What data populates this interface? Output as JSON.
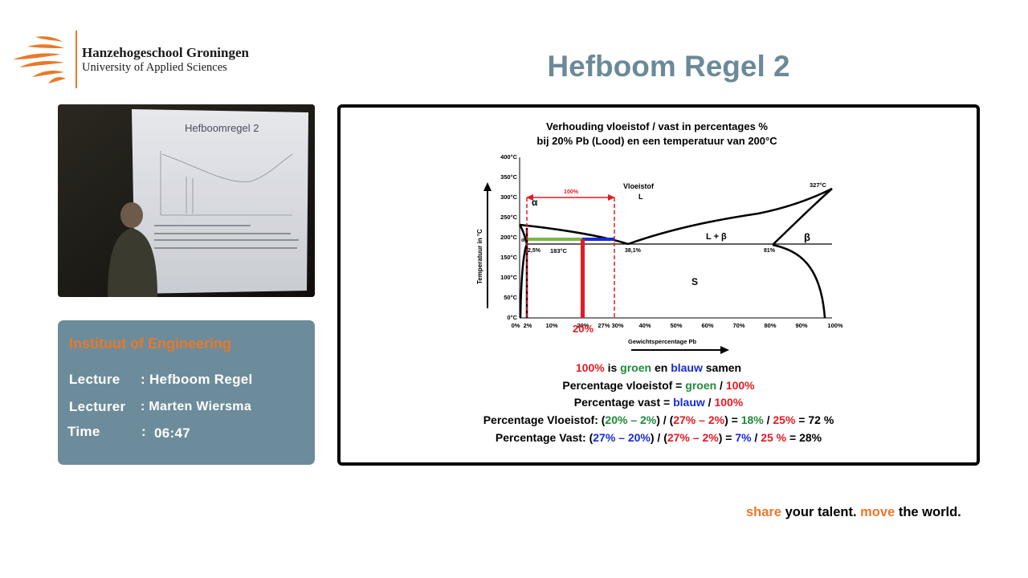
{
  "logo": {
    "name": "Hanzehogeschool Groningen",
    "subtitle": "University of Applied Sciences",
    "icon": "flame-logo-icon"
  },
  "page": {
    "title": "Hefboom Regel 2"
  },
  "video": {
    "slide_title": "Hefboomregel 2",
    "icon": "lecture-video-frame"
  },
  "info": {
    "heading": "Instituut of Engineering",
    "rows": [
      {
        "label": "Lecture",
        "value": ": Hefboom Regel"
      },
      {
        "label": "Lecturer",
        "value": ": Marten Wiersma"
      },
      {
        "label": "Time",
        "value": ":",
        "value2": "06:47"
      }
    ]
  },
  "diagram": {
    "title_line1": "Verhouding vloeistof / vast in percentages %",
    "title_line2": "bij 20% Pb (Lood) en een temperatuur van 200°C",
    "ylabel": "Temperatuur in °C",
    "xlabel": "Gewichtspercentage Pb",
    "yticks": [
      "400°C",
      "350°C",
      "300°C",
      "250°C",
      "200°C",
      "150°C",
      "100°C",
      "50°C",
      "0°C"
    ],
    "xticks": [
      "0%",
      "2%",
      "10%",
      "20%",
      "27%",
      "30%",
      "40%",
      "50%",
      "60%",
      "70%",
      "80%",
      "90%",
      "100%"
    ],
    "labels": {
      "vloeistof": "Vloeistof",
      "L": "L",
      "alpha": "α",
      "alpha_small": "α",
      "beta": "β",
      "L_plus_beta": "L + β",
      "S": "S",
      "pct_100": "100%",
      "p2_5": "2,5%",
      "eutectic_temp": "183°C",
      "p38_1": "38,1%",
      "p81": "81%",
      "t327": "327°C",
      "marker_20": "20%"
    },
    "colors": {
      "red": "#e41b23",
      "green": "#7ab648",
      "blue": "#1a2bd6"
    }
  },
  "formulas": {
    "line1": {
      "a": "100%",
      "b": " is ",
      "c": "groen",
      "d": " en ",
      "e": "blauw",
      "f": " samen"
    },
    "line2": {
      "a": "Percentage vloeistof = ",
      "b": "groen",
      "c": " / ",
      "d": "100%"
    },
    "line3": {
      "a": "Percentage vast = ",
      "b": "blauw",
      "c": " / ",
      "d": "100%"
    },
    "line4": {
      "a": "Percentage Vloeistof: (",
      "b": "20% – 2%",
      "c": ") / (",
      "d": "27% – 2%",
      "e": ") = ",
      "f": "18%",
      "g": " / ",
      "h": "25%",
      "i": " = 72 %"
    },
    "line5": {
      "a": "Percentage Vast: (",
      "b": "27% – 20%",
      "c": ") / (",
      "d": "27% – 2%",
      "e": ") = ",
      "f": "7%",
      "g": " / ",
      "h": "25 %",
      "i": " = 28%"
    }
  },
  "tagline": {
    "w1": "share",
    "w2": " your talent. ",
    "w3": "move",
    "w4": " the world."
  }
}
